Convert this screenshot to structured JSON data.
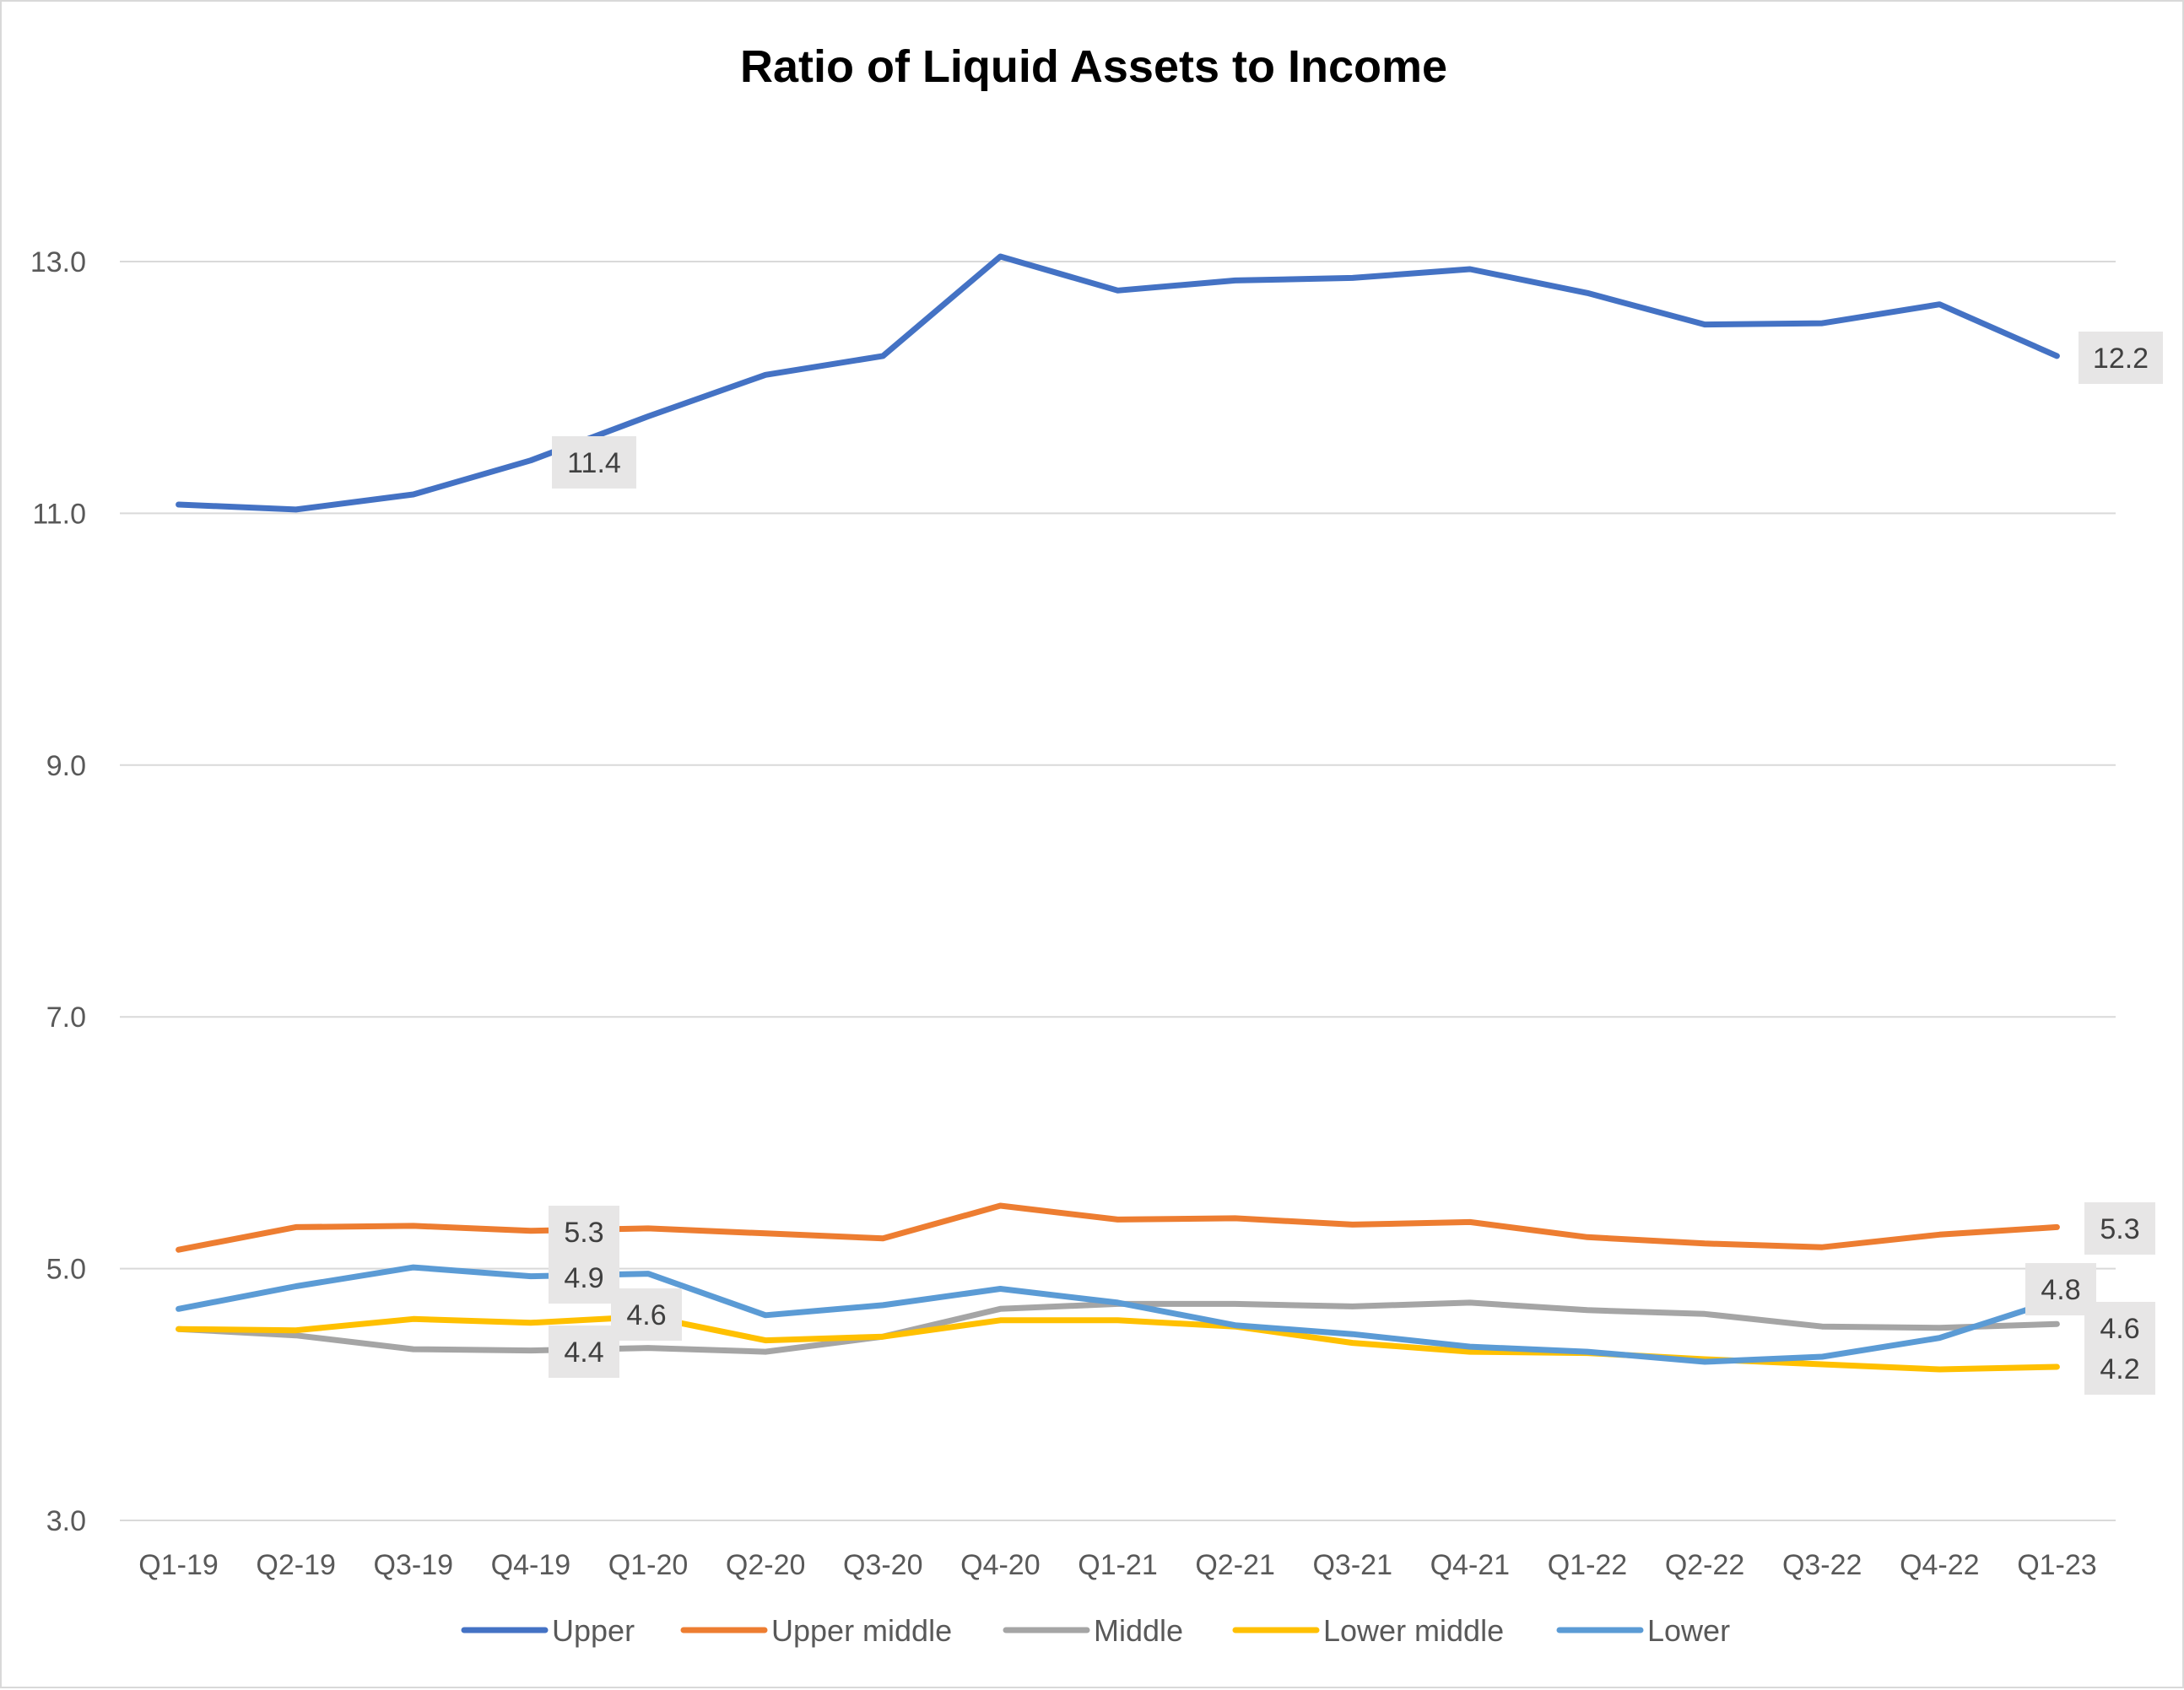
{
  "chart_data": {
    "type": "line",
    "title": "Ratio of Liquid Assets to Income",
    "xlabel": "",
    "ylabel": "",
    "categories": [
      "Q1-19",
      "Q2-19",
      "Q3-19",
      "Q4-19",
      "Q1-20",
      "Q2-20",
      "Q3-20",
      "Q4-20",
      "Q1-21",
      "Q2-21",
      "Q3-21",
      "Q4-21",
      "Q1-22",
      "Q2-22",
      "Q3-22",
      "Q4-22",
      "Q1-23"
    ],
    "ylim": [
      3.0,
      13.0
    ],
    "yticks": [
      "3.0",
      "5.0",
      "7.0",
      "9.0",
      "11.0",
      "13.0"
    ],
    "grid": true,
    "legend_position": "bottom",
    "series": [
      {
        "name": "Upper",
        "color": "#4472c4",
        "values": [
          11.07,
          11.03,
          11.15,
          11.42,
          11.77,
          12.1,
          12.25,
          13.04,
          12.77,
          12.85,
          12.87,
          12.94,
          12.75,
          12.5,
          12.51,
          12.66,
          12.25
        ],
        "labels": [
          {
            "index": 3,
            "text": "11.4"
          },
          {
            "index": 16,
            "text": "12.2"
          }
        ]
      },
      {
        "name": "Upper middle",
        "color": "#ed7d31",
        "values": [
          5.15,
          5.33,
          5.34,
          5.3,
          5.32,
          5.28,
          5.24,
          5.5,
          5.39,
          5.4,
          5.35,
          5.37,
          5.25,
          5.2,
          5.17,
          5.27,
          5.33
        ],
        "labels": [
          {
            "index": 3,
            "text": "5.3"
          },
          {
            "index": 16,
            "text": "5.3"
          }
        ]
      },
      {
        "name": "Middle",
        "color": "#a5a5a5",
        "values": [
          4.52,
          4.47,
          4.36,
          4.35,
          4.37,
          4.34,
          4.46,
          4.68,
          4.72,
          4.72,
          4.7,
          4.73,
          4.67,
          4.64,
          4.54,
          4.53,
          4.56
        ],
        "labels": [
          {
            "index": 3,
            "text": "4.4"
          },
          {
            "index": 16,
            "text": "4.6"
          }
        ]
      },
      {
        "name": "Lower middle",
        "color": "#ffc000",
        "values": [
          4.52,
          4.51,
          4.6,
          4.57,
          4.62,
          4.43,
          4.46,
          4.59,
          4.59,
          4.54,
          4.41,
          4.34,
          4.33,
          4.28,
          4.24,
          4.2,
          4.22
        ],
        "labels": [
          {
            "index": 3,
            "text": "4.6"
          },
          {
            "index": 16,
            "text": "4.2"
          }
        ]
      },
      {
        "name": "Lower",
        "color": "#5b9bd5",
        "values": [
          4.68,
          4.86,
          5.01,
          4.94,
          4.96,
          4.63,
          4.71,
          4.84,
          4.73,
          4.55,
          4.48,
          4.38,
          4.34,
          4.26,
          4.3,
          4.45,
          4.75
        ],
        "labels": [
          {
            "index": 3,
            "text": "4.9"
          },
          {
            "index": 16,
            "text": "4.8"
          }
        ]
      }
    ]
  }
}
